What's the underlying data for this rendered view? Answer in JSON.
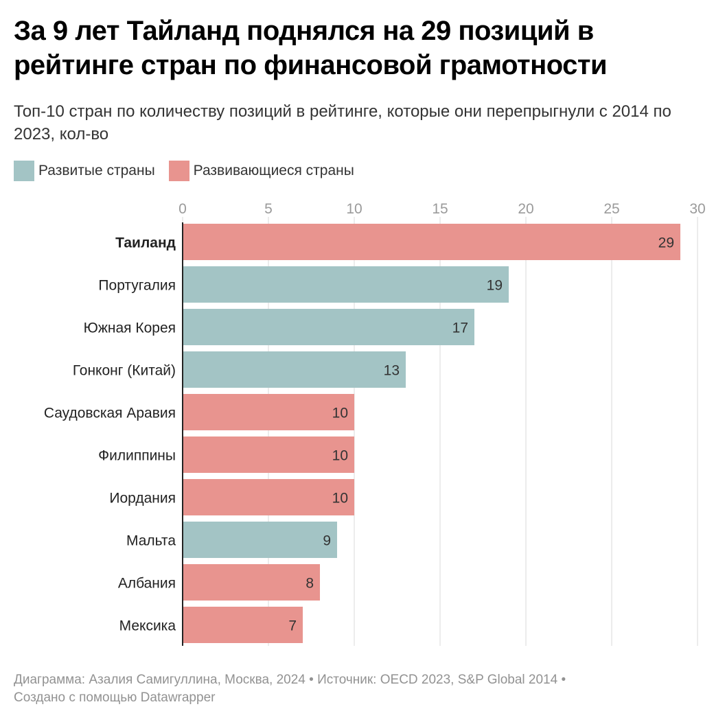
{
  "title": "За 9 лет Тайланд поднялся на 29 позиций в рейтинге стран по финансовой грамотности",
  "subtitle": "Топ-10 стран по количеству позиций в рейтинге, которые они перепрыгнули с 2014 по 2023, кол-во",
  "legend": [
    {
      "label": "Развитые страны",
      "color": "#a3c4c5"
    },
    {
      "label": "Развивающиеся страны",
      "color": "#e8948f"
    }
  ],
  "chart_data": {
    "type": "bar",
    "orientation": "horizontal",
    "categories": [
      "Таиланд",
      "Португалия",
      "Южная Корея",
      "Гонконг (Китай)",
      "Саудовская Аравия",
      "Филиппины",
      "Иордания",
      "Мальта",
      "Албания",
      "Мексика"
    ],
    "values": [
      29,
      19,
      17,
      13,
      10,
      10,
      10,
      9,
      8,
      7
    ],
    "groups": [
      "Развивающиеся страны",
      "Развитые страны",
      "Развитые страны",
      "Развитые страны",
      "Развивающиеся страны",
      "Развивающиеся страны",
      "Развивающиеся страны",
      "Развитые страны",
      "Развивающиеся страны",
      "Развивающиеся страны"
    ],
    "highlight": "Таиланд",
    "xlim": [
      0,
      30
    ],
    "xticks": [
      0,
      5,
      10,
      15,
      20,
      25,
      30
    ],
    "xlabel": "",
    "ylabel": "",
    "grid": true
  },
  "footer": {
    "line1": "Диаграмма: Азалия Самигуллина, Москва, 2024 • Источник: OECD 2023, S&P Global 2014 •",
    "line2": "Создано с помощью Datawrapper"
  }
}
